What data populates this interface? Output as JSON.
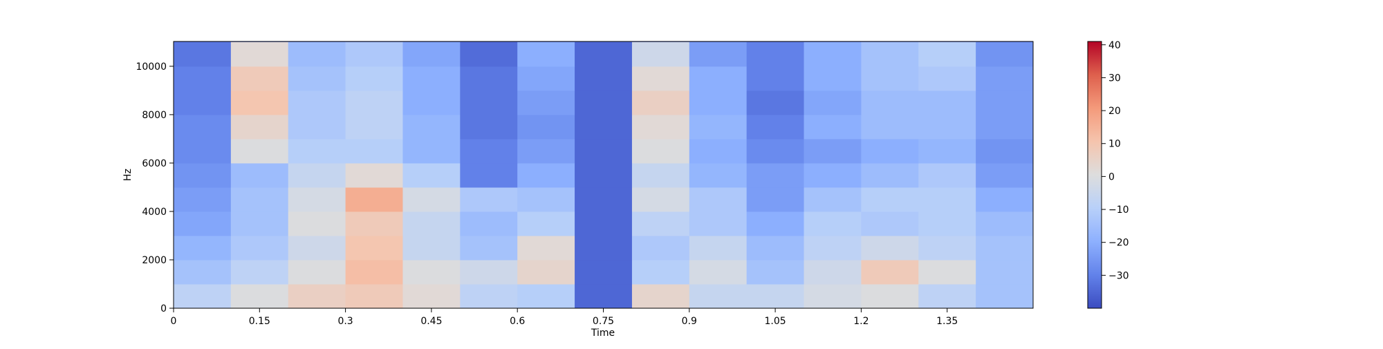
{
  "chart_data": {
    "type": "heatmap",
    "title": "",
    "xlabel": "Time",
    "ylabel": "Hz",
    "xlim": [
      0,
      1.5
    ],
    "ylim": [
      0,
      11025
    ],
    "xticks": [
      {
        "value": 0,
        "label": "0"
      },
      {
        "value": 0.15,
        "label": "0.15"
      },
      {
        "value": 0.3,
        "label": "0.3"
      },
      {
        "value": 0.45,
        "label": "0.45"
      },
      {
        "value": 0.6,
        "label": "0.6"
      },
      {
        "value": 0.75,
        "label": "0.75"
      },
      {
        "value": 0.9,
        "label": "0.9"
      },
      {
        "value": 1.05,
        "label": "1.05"
      },
      {
        "value": 1.2,
        "label": "1.2"
      },
      {
        "value": 1.35,
        "label": "1.35"
      }
    ],
    "yticks": [
      {
        "value": 0,
        "label": "0"
      },
      {
        "value": 2000,
        "label": "2000"
      },
      {
        "value": 4000,
        "label": "4000"
      },
      {
        "value": 6000,
        "label": "6000"
      },
      {
        "value": 8000,
        "label": "8000"
      },
      {
        "value": 10000,
        "label": "10000"
      }
    ],
    "colorbar": {
      "colormap": "coolwarm",
      "range": [
        -40,
        41
      ],
      "ticks": [
        {
          "value": 40,
          "label": "40"
        },
        {
          "value": 30,
          "label": "30"
        },
        {
          "value": 20,
          "label": "20"
        },
        {
          "value": 10,
          "label": "10"
        },
        {
          "value": 0,
          "label": "0"
        },
        {
          "value": -10,
          "label": "−10"
        },
        {
          "value": -20,
          "label": "−20"
        },
        {
          "value": -30,
          "label": "−30"
        }
      ]
    },
    "time_bins": [
      0.0,
      0.1,
      0.2,
      0.3,
      0.4,
      0.5,
      0.6,
      0.7,
      0.8,
      0.9,
      1.0,
      1.1,
      1.2,
      1.3,
      1.4
    ],
    "freq_bins_hz": [
      0,
      1000,
      2000,
      3000,
      4000,
      5000,
      6000,
      7000,
      8000,
      9000,
      10000
    ],
    "values_db": [
      [
        -8,
        0,
        6,
        8,
        2,
        -8,
        -10,
        -35,
        4,
        -6,
        -6,
        -2,
        0,
        -8,
        -14
      ],
      [
        -14,
        -8,
        0,
        12,
        0,
        -4,
        4,
        -35,
        -10,
        -2,
        -14,
        -4,
        8,
        0,
        -14
      ],
      [
        -18,
        -12,
        -4,
        10,
        -6,
        -14,
        2,
        -35,
        -12,
        -6,
        -16,
        -8,
        -4,
        -8,
        -14
      ],
      [
        -22,
        -14,
        0,
        8,
        -6,
        -16,
        -10,
        -35,
        -8,
        -12,
        -20,
        -10,
        -12,
        -10,
        -16
      ],
      [
        -24,
        -14,
        -2,
        16,
        -2,
        -12,
        -14,
        -35,
        -2,
        -12,
        -24,
        -14,
        -10,
        -10,
        -20
      ],
      [
        -26,
        -16,
        -6,
        2,
        -10,
        -30,
        -20,
        -35,
        -6,
        -18,
        -24,
        -20,
        -16,
        -12,
        -24
      ],
      [
        -28,
        0,
        -10,
        -10,
        -18,
        -30,
        -24,
        -35,
        0,
        -20,
        -28,
        -24,
        -20,
        -18,
        -26
      ],
      [
        -28,
        4,
        -12,
        -8,
        -18,
        -32,
        -26,
        -35,
        2,
        -18,
        -30,
        -20,
        -16,
        -16,
        -24
      ],
      [
        -30,
        10,
        -12,
        -8,
        -20,
        -32,
        -24,
        -35,
        6,
        -20,
        -32,
        -22,
        -16,
        -16,
        -24
      ],
      [
        -30,
        8,
        -14,
        -10,
        -20,
        -32,
        -22,
        -35,
        2,
        -20,
        -30,
        -20,
        -14,
        -12,
        -24
      ],
      [
        -32,
        2,
        -16,
        -12,
        -22,
        -34,
        -20,
        -35,
        -4,
        -24,
        -30,
        -20,
        -14,
        -10,
        -26
      ]
    ]
  }
}
